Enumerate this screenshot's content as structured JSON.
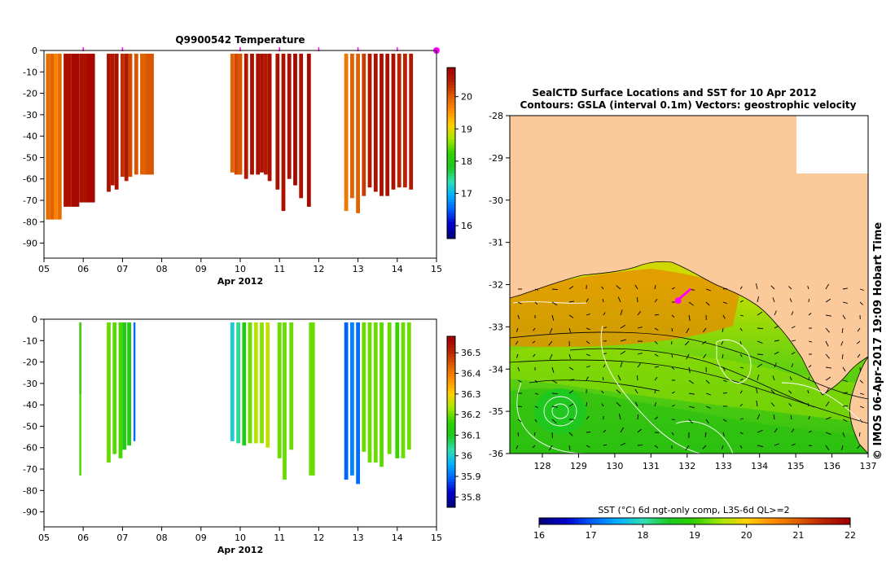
{
  "credit": "© IMOS 06-Apr-2017 19:09 Hobart Time",
  "chart_data": [
    {
      "id": "temperature_profile",
      "type": "heatmap",
      "title": "Q9900542  Temperature",
      "xlabel": "Apr 2012",
      "x_ticks": [
        "05",
        "06",
        "07",
        "08",
        "09",
        "10",
        "11",
        "12",
        "13",
        "14",
        "15"
      ],
      "xlim": [
        5,
        15
      ],
      "y_ticks": [
        "0",
        "-10",
        "-20",
        "-30",
        "-40",
        "-50",
        "-60",
        "-70",
        "-80",
        "-90"
      ],
      "ylim": [
        -97,
        0
      ],
      "profile_markers_day": [
        6,
        7,
        10,
        11,
        12,
        13,
        14,
        15
      ],
      "colorbar": {
        "ticks": [
          "16",
          "17",
          "18",
          "19",
          "20"
        ],
        "range": [
          15.6,
          20.9
        ]
      },
      "profiles": [
        {
          "day": 5.05,
          "w": 0.1,
          "depth": 79,
          "value": 19.9
        },
        {
          "day": 5.15,
          "w": 0.1,
          "depth": 79,
          "value": 20.0
        },
        {
          "day": 5.25,
          "w": 0.1,
          "depth": 79,
          "value": 19.7
        },
        {
          "day": 5.35,
          "w": 0.1,
          "depth": 79,
          "value": 19.9
        },
        {
          "day": 5.5,
          "w": 0.2,
          "depth": 73,
          "value": 20.7
        },
        {
          "day": 5.7,
          "w": 0.2,
          "depth": 73,
          "value": 20.8
        },
        {
          "day": 5.9,
          "w": 0.2,
          "depth": 71,
          "value": 20.7
        },
        {
          "day": 6.1,
          "w": 0.2,
          "depth": 71,
          "value": 20.8
        },
        {
          "day": 6.6,
          "w": 0.1,
          "depth": 66,
          "value": 20.7
        },
        {
          "day": 6.7,
          "w": 0.1,
          "depth": 63,
          "value": 20.6
        },
        {
          "day": 6.8,
          "w": 0.1,
          "depth": 65,
          "value": 20.7
        },
        {
          "day": 6.95,
          "w": 0.1,
          "depth": 59,
          "value": 20.4
        },
        {
          "day": 7.05,
          "w": 0.1,
          "depth": 61,
          "value": 20.6
        },
        {
          "day": 7.15,
          "w": 0.1,
          "depth": 59,
          "value": 20.2
        },
        {
          "day": 7.3,
          "w": 0.1,
          "depth": 58,
          "value": 20.1
        },
        {
          "day": 7.45,
          "w": 0.2,
          "depth": 58,
          "value": 20.0
        },
        {
          "day": 7.6,
          "w": 0.2,
          "depth": 58,
          "value": 20.1
        },
        {
          "day": 9.75,
          "w": 0.1,
          "depth": 57,
          "value": 20.0
        },
        {
          "day": 9.85,
          "w": 0.1,
          "depth": 58,
          "value": 20.2
        },
        {
          "day": 9.95,
          "w": 0.1,
          "depth": 58,
          "value": 20.1
        },
        {
          "day": 10.1,
          "w": 0.1,
          "depth": 60,
          "value": 20.6
        },
        {
          "day": 10.25,
          "w": 0.1,
          "depth": 58,
          "value": 20.7
        },
        {
          "day": 10.4,
          "w": 0.1,
          "depth": 58,
          "value": 20.7
        },
        {
          "day": 10.5,
          "w": 0.1,
          "depth": 57,
          "value": 20.7
        },
        {
          "day": 10.6,
          "w": 0.1,
          "depth": 58,
          "value": 20.6
        },
        {
          "day": 10.7,
          "w": 0.1,
          "depth": 61,
          "value": 20.7
        },
        {
          "day": 10.9,
          "w": 0.1,
          "depth": 65,
          "value": 20.7
        },
        {
          "day": 11.05,
          "w": 0.1,
          "depth": 75,
          "value": 20.7
        },
        {
          "day": 11.2,
          "w": 0.1,
          "depth": 60,
          "value": 20.7
        },
        {
          "day": 11.35,
          "w": 0.1,
          "depth": 63,
          "value": 20.8
        },
        {
          "day": 11.5,
          "w": 0.1,
          "depth": 69,
          "value": 20.7
        },
        {
          "day": 11.7,
          "w": 0.1,
          "depth": 73,
          "value": 20.8
        },
        {
          "day": 12.65,
          "w": 0.1,
          "depth": 75,
          "value": 19.8
        },
        {
          "day": 12.8,
          "w": 0.1,
          "depth": 69,
          "value": 20.0
        },
        {
          "day": 12.95,
          "w": 0.1,
          "depth": 76,
          "value": 20.0
        },
        {
          "day": 13.1,
          "w": 0.1,
          "depth": 68,
          "value": 20.3
        },
        {
          "day": 13.25,
          "w": 0.1,
          "depth": 64,
          "value": 20.6
        },
        {
          "day": 13.4,
          "w": 0.1,
          "depth": 66,
          "value": 20.7
        },
        {
          "day": 13.55,
          "w": 0.1,
          "depth": 68,
          "value": 20.7
        },
        {
          "day": 13.7,
          "w": 0.1,
          "depth": 68,
          "value": 20.7
        },
        {
          "day": 13.85,
          "w": 0.1,
          "depth": 65,
          "value": 20.7
        },
        {
          "day": 14.0,
          "w": 0.1,
          "depth": 64,
          "value": 20.5
        },
        {
          "day": 14.15,
          "w": 0.1,
          "depth": 64,
          "value": 20.5
        },
        {
          "day": 14.3,
          "w": 0.1,
          "depth": 65,
          "value": 20.6
        }
      ]
    },
    {
      "id": "salinity_profile",
      "type": "heatmap",
      "title": "",
      "xlabel": "Apr 2012",
      "x_ticks": [
        "05",
        "06",
        "07",
        "08",
        "09",
        "10",
        "11",
        "12",
        "13",
        "14",
        "15"
      ],
      "xlim": [
        5,
        15
      ],
      "y_ticks": [
        "0",
        "-10",
        "-20",
        "-30",
        "-40",
        "-50",
        "-60",
        "-70",
        "-80",
        "-90"
      ],
      "ylim": [
        -97,
        0
      ],
      "colorbar": {
        "ticks": [
          "35.8",
          "35.9",
          "36",
          "36.1",
          "36.2",
          "36.3",
          "36.4",
          "36.5"
        ],
        "range": [
          35.75,
          36.58
        ]
      },
      "profiles": [
        {
          "day": 5.9,
          "w": 0.05,
          "depth": 35,
          "value": 35.78
        },
        {
          "day": 5.9,
          "w": 0.05,
          "depth": 73,
          "value": 36.18
        },
        {
          "day": 6.6,
          "w": 0.1,
          "depth": 67,
          "value": 36.2
        },
        {
          "day": 6.75,
          "w": 0.1,
          "depth": 63,
          "value": 36.19
        },
        {
          "day": 6.9,
          "w": 0.1,
          "depth": 65,
          "value": 36.18
        },
        {
          "day": 7.0,
          "w": 0.1,
          "depth": 61,
          "value": 36.12
        },
        {
          "day": 7.12,
          "w": 0.1,
          "depth": 59,
          "value": 36.12
        },
        {
          "day": 7.28,
          "w": 0.05,
          "depth": 57,
          "value": 35.9
        },
        {
          "day": 9.75,
          "w": 0.1,
          "depth": 57,
          "value": 36.0
        },
        {
          "day": 9.9,
          "w": 0.1,
          "depth": 58,
          "value": 36.04
        },
        {
          "day": 10.05,
          "w": 0.1,
          "depth": 59,
          "value": 36.12
        },
        {
          "day": 10.2,
          "w": 0.1,
          "depth": 58,
          "value": 36.2
        },
        {
          "day": 10.35,
          "w": 0.1,
          "depth": 58,
          "value": 36.25
        },
        {
          "day": 10.5,
          "w": 0.1,
          "depth": 58,
          "value": 36.22
        },
        {
          "day": 10.65,
          "w": 0.1,
          "depth": 60,
          "value": 36.26
        },
        {
          "day": 10.95,
          "w": 0.1,
          "depth": 65,
          "value": 36.2
        },
        {
          "day": 11.08,
          "w": 0.1,
          "depth": 75,
          "value": 36.2
        },
        {
          "day": 11.25,
          "w": 0.1,
          "depth": 61,
          "value": 36.2
        },
        {
          "day": 11.75,
          "w": 0.15,
          "depth": 73,
          "value": 36.2
        },
        {
          "day": 12.65,
          "w": 0.1,
          "depth": 75,
          "value": 35.89
        },
        {
          "day": 12.8,
          "w": 0.1,
          "depth": 73,
          "value": 35.92
        },
        {
          "day": 12.95,
          "w": 0.1,
          "depth": 77,
          "value": 35.9
        },
        {
          "day": 13.1,
          "w": 0.1,
          "depth": 62,
          "value": 36.2
        },
        {
          "day": 13.25,
          "w": 0.1,
          "depth": 67,
          "value": 36.2
        },
        {
          "day": 13.4,
          "w": 0.1,
          "depth": 67,
          "value": 36.2
        },
        {
          "day": 13.55,
          "w": 0.1,
          "depth": 69,
          "value": 36.19
        },
        {
          "day": 13.75,
          "w": 0.1,
          "depth": 63,
          "value": 36.2
        },
        {
          "day": 13.95,
          "w": 0.1,
          "depth": 65,
          "value": 36.17
        },
        {
          "day": 14.1,
          "w": 0.1,
          "depth": 65,
          "value": 36.2
        },
        {
          "day": 14.25,
          "w": 0.1,
          "depth": 61,
          "value": 36.2
        }
      ]
    },
    {
      "id": "sst_map",
      "type": "heatmap",
      "title": "SealCTD Surface Locations and SST for 10 Apr 2012",
      "subtitle": "Contours: GSLA (interval 0.1m) Vectors: geostrophic velocity",
      "x_ticks": [
        "128",
        "129",
        "130",
        "131",
        "132",
        "133",
        "134",
        "135",
        "136",
        "137"
      ],
      "xlim": [
        127.1,
        137
      ],
      "y_ticks": [
        "-28",
        "-29",
        "-30",
        "-31",
        "-32",
        "-33",
        "-34",
        "-35",
        "-36"
      ],
      "ylim": [
        -36,
        -28
      ],
      "track_lon": [
        131.75,
        131.8,
        131.9,
        132.0,
        132.1
      ],
      "track_lat": [
        -32.38,
        -32.32,
        -32.25,
        -32.18,
        -32.1
      ],
      "colorbar": {
        "label": "SST (°C) 6d ngt-only comp, L3S-6d QL>=2",
        "ticks": [
          "16",
          "17",
          "18",
          "19",
          "20",
          "21",
          "22"
        ],
        "range": [
          16,
          22
        ]
      }
    }
  ],
  "colors": {
    "land": "#fcc99a",
    "marker": "#ff00ff",
    "scale_stops": [
      "#00007f",
      "#0000d0",
      "#0060ff",
      "#00b0ff",
      "#30e0b0",
      "#1dc920",
      "#30d000",
      "#a0e800",
      "#ffd000",
      "#ff9000",
      "#e06000",
      "#bb2500",
      "#a00000"
    ]
  }
}
